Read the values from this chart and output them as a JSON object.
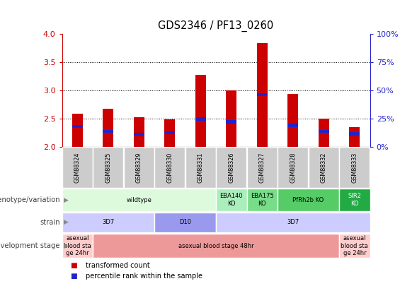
{
  "title": "GDS2346 / PF13_0260",
  "samples": [
    "GSM88324",
    "GSM88325",
    "GSM88329",
    "GSM88330",
    "GSM88331",
    "GSM88326",
    "GSM88327",
    "GSM88328",
    "GSM88332",
    "GSM88333"
  ],
  "transformed_counts": [
    2.58,
    2.67,
    2.52,
    2.49,
    3.27,
    3.0,
    3.84,
    2.94,
    2.5,
    2.35
  ],
  "percentile_values": [
    2.36,
    2.27,
    2.22,
    2.25,
    2.49,
    2.44,
    2.92,
    2.38,
    2.27,
    2.23
  ],
  "ylim": [
    2.0,
    4.0
  ],
  "y2lim": [
    0,
    100
  ],
  "yticks": [
    2.0,
    2.5,
    3.0,
    3.5,
    4.0
  ],
  "y2ticks": [
    0,
    25,
    50,
    75,
    100
  ],
  "bar_color": "#cc0000",
  "percentile_color": "#2222cc",
  "bar_width": 0.35,
  "genotype_rows": [
    {
      "label": "wildtype",
      "start": 0,
      "end": 4,
      "color": "#ddfadd",
      "text_color": "#000000"
    },
    {
      "label": "EBA140\nKO",
      "start": 5,
      "end": 5,
      "color": "#aaeebb",
      "text_color": "#000000"
    },
    {
      "label": "EBA175\nKO",
      "start": 6,
      "end": 6,
      "color": "#77dd88",
      "text_color": "#000000"
    },
    {
      "label": "PfRh2b KO",
      "start": 7,
      "end": 8,
      "color": "#55cc66",
      "text_color": "#000000"
    },
    {
      "label": "SIR2\nKO",
      "start": 9,
      "end": 9,
      "color": "#22aa44",
      "text_color": "#ffffff"
    }
  ],
  "strain_rows": [
    {
      "label": "3D7",
      "start": 0,
      "end": 2,
      "color": "#ccccff"
    },
    {
      "label": "D10",
      "start": 3,
      "end": 4,
      "color": "#9999ee"
    },
    {
      "label": "3D7",
      "start": 5,
      "end": 9,
      "color": "#ccccff"
    }
  ],
  "dev_stage_rows": [
    {
      "label": "asexual\nblood sta\nge 24hr",
      "start": 0,
      "end": 0,
      "color": "#ffcccc"
    },
    {
      "label": "asexual blood stage 48hr",
      "start": 1,
      "end": 8,
      "color": "#ee9999"
    },
    {
      "label": "asexual\nblood sta\nge 24hr",
      "start": 9,
      "end": 9,
      "color": "#ffcccc"
    }
  ],
  "legend_items": [
    {
      "label": "transformed count",
      "color": "#cc0000"
    },
    {
      "label": "percentile rank within the sample",
      "color": "#2222cc"
    }
  ],
  "row_labels": [
    "genotype/variation",
    "strain",
    "development stage"
  ],
  "tick_color_left": "#cc0000",
  "tick_color_right": "#2222cc",
  "sample_box_color": "#cccccc",
  "grid_color": "#000000",
  "chart_border_color": "#000000"
}
